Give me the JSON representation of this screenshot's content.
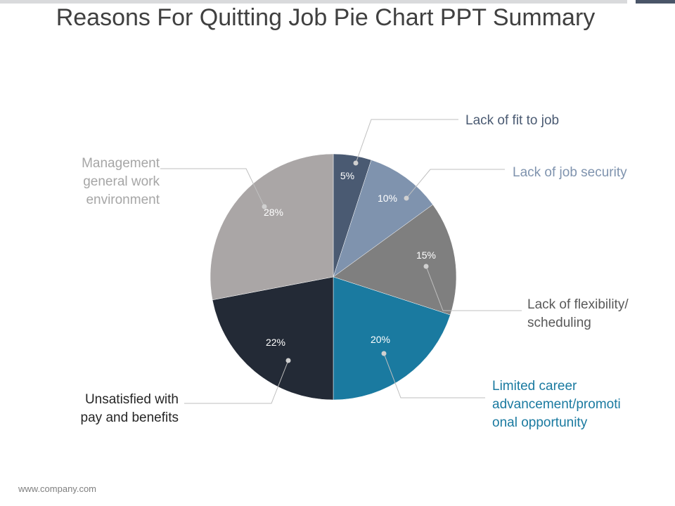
{
  "title": "Reasons For Quitting Job Pie Chart PPT Summary",
  "footer": "www.company.com",
  "chart_data": {
    "type": "pie",
    "title": "Reasons For Quitting Job Pie Chart PPT Summary",
    "slices": [
      {
        "name": "Lack of fit to job",
        "value": 5,
        "label": "5%",
        "color": "#4a5a72",
        "label_color": "#4a5a72",
        "value_color": "#ffffff"
      },
      {
        "name": "Lack of job security",
        "value": 10,
        "label": "10%",
        "color": "#7f93ae",
        "label_color": "#7f93ae",
        "value_color": "#ffffff"
      },
      {
        "name": "Lack of flexibility/ scheduling",
        "value": 15,
        "label": "15%",
        "color": "#7f7f7f",
        "label_color": "#595959",
        "value_color": "#ffffff"
      },
      {
        "name": "Limited career advancement/promotional opportunity",
        "value": 20,
        "label": "20%",
        "color": "#1a7aa0",
        "label_color": "#1a7aa0",
        "value_color": "#ffffff"
      },
      {
        "name": "Unsatisfied with pay and benefits",
        "value": 22,
        "label": "22%",
        "color": "#232a36",
        "label_color": "#262626",
        "value_color": "#ffffff"
      },
      {
        "name": "Management general work environment",
        "value": 28,
        "label": "28%",
        "color": "#aaa6a6",
        "label_color": "#a6a6a6",
        "value_color": "#ffffff"
      }
    ],
    "label_lines": [
      [
        "Lack of fit to job"
      ],
      [
        "Lack of job security"
      ],
      [
        "Lack of flexibility/",
        "scheduling"
      ],
      [
        "Limited career",
        "advancement/promoti",
        "onal opportunity"
      ],
      [
        "Unsatisfied with",
        "pay and benefits"
      ],
      [
        "Management",
        "general work",
        "environment"
      ]
    ],
    "legend": "none"
  }
}
